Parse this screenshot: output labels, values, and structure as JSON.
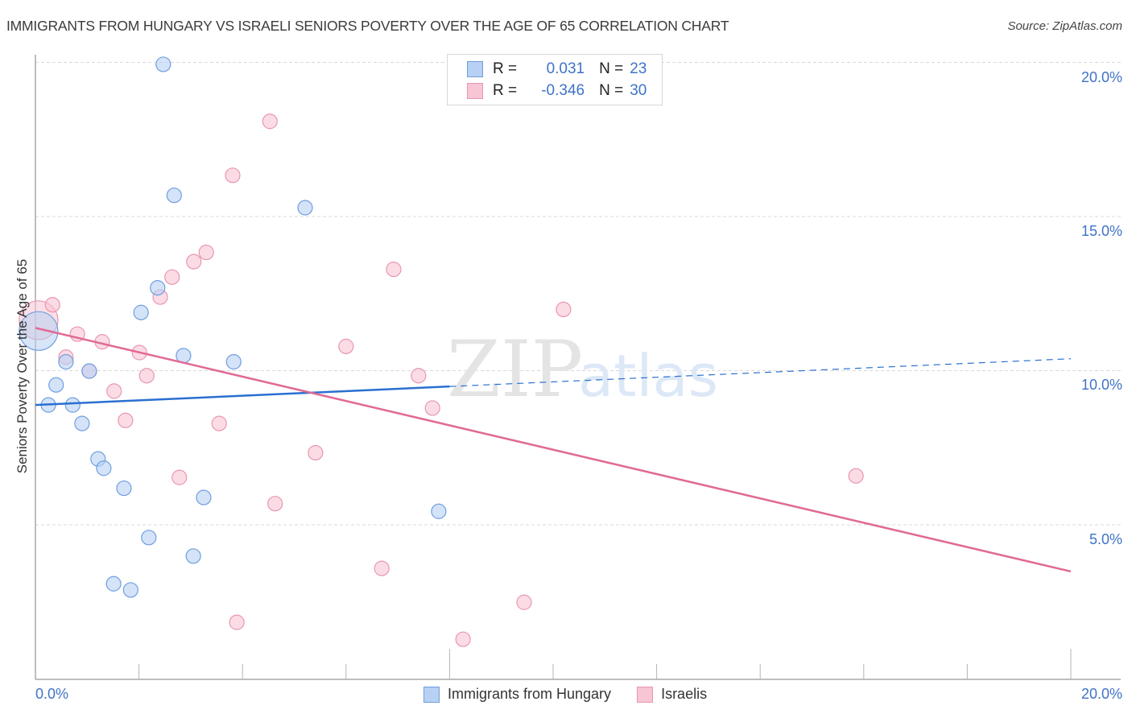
{
  "header": {
    "title": "IMMIGRANTS FROM HUNGARY VS ISRAELI SENIORS POVERTY OVER THE AGE OF 65 CORRELATION CHART",
    "source": "Source: ZipAtlas.com"
  },
  "watermark": {
    "zip": "ZIP",
    "atlas": "atlas"
  },
  "colors": {
    "blue_fill": "#b7d0f3",
    "blue_stroke": "#6f9ee0",
    "blue_line": "#2a6fd0",
    "pink_fill": "#f8c5d4",
    "pink_stroke": "#e996b0",
    "pink_line": "#e06a95",
    "axis_text": "#3f73c8",
    "grid": "#d9d9d9"
  },
  "legend_top": {
    "rows": [
      {
        "r_label": "R =",
        "r_value": "0.031",
        "n_label": "N =",
        "n_value": "23"
      },
      {
        "r_label": "R =",
        "r_value": "-0.346",
        "n_label": "N =",
        "n_value": "30"
      }
    ]
  },
  "legend_bottom": {
    "items": [
      {
        "label": "Immigrants from Hungary"
      },
      {
        "label": "Israelis"
      }
    ]
  },
  "axes": {
    "ylabel": "Seniors Poverty Over the Age of 65",
    "y_ticks": [
      "20.0%",
      "15.0%",
      "10.0%",
      "5.0%"
    ],
    "x_ticks": [
      "0.0%",
      "20.0%"
    ]
  },
  "chart_data": {
    "type": "scatter",
    "title": "IMMIGRANTS FROM HUNGARY VS ISRAELI SENIORS POVERTY OVER THE AGE OF 65 CORRELATION CHART",
    "xlabel": "",
    "ylabel": "Seniors Poverty Over the Age of 65",
    "xlim": [
      0,
      20
    ],
    "ylim": [
      0,
      20.5
    ],
    "x_tick_labels": [
      "0.0%",
      "20.0%"
    ],
    "y_tick_labels": [
      "5.0%",
      "10.0%",
      "15.0%",
      "20.0%"
    ],
    "grid": true,
    "legend_position": "bottom",
    "series": [
      {
        "name": "Immigrants from Hungary",
        "color": "#6f9ee0",
        "R": 0.031,
        "N": 23,
        "trend": {
          "x": [
            0,
            8,
            20
          ],
          "y": [
            8.9,
            9.5,
            10.4
          ],
          "solid_until_x": 8
        },
        "points": [
          [
            0.06,
            11.3,
            "large"
          ],
          [
            0.25,
            8.9
          ],
          [
            0.4,
            9.55
          ],
          [
            0.59,
            10.3
          ],
          [
            0.72,
            8.9
          ],
          [
            0.9,
            8.3
          ],
          [
            1.04,
            10.0
          ],
          [
            1.21,
            7.15
          ],
          [
            1.32,
            6.85
          ],
          [
            1.51,
            3.1
          ],
          [
            1.71,
            6.2
          ],
          [
            1.84,
            2.9
          ],
          [
            2.04,
            11.9
          ],
          [
            2.19,
            4.6
          ],
          [
            2.36,
            12.7
          ],
          [
            2.47,
            19.95
          ],
          [
            2.68,
            15.7
          ],
          [
            2.86,
            10.5
          ],
          [
            3.05,
            4.0
          ],
          [
            3.25,
            5.9
          ],
          [
            3.83,
            10.3
          ],
          [
            5.21,
            15.3
          ],
          [
            7.79,
            5.45
          ]
        ]
      },
      {
        "name": "Israelis",
        "color": "#e996b0",
        "R": -0.346,
        "N": 30,
        "trend": {
          "x": [
            0,
            20
          ],
          "y": [
            11.4,
            3.5
          ]
        },
        "points": [
          [
            0.06,
            11.65,
            "large"
          ],
          [
            0.33,
            12.15
          ],
          [
            0.59,
            10.45
          ],
          [
            0.81,
            11.2
          ],
          [
            1.04,
            10.0
          ],
          [
            1.29,
            10.95
          ],
          [
            1.52,
            9.35
          ],
          [
            1.74,
            8.4
          ],
          [
            2.01,
            10.6
          ],
          [
            2.15,
            9.85
          ],
          [
            2.41,
            12.4
          ],
          [
            2.64,
            13.05
          ],
          [
            2.78,
            6.55
          ],
          [
            3.06,
            13.55
          ],
          [
            3.3,
            13.85
          ],
          [
            3.55,
            8.3
          ],
          [
            3.81,
            16.35
          ],
          [
            3.89,
            1.85
          ],
          [
            4.53,
            18.1
          ],
          [
            4.63,
            5.7
          ],
          [
            5.41,
            7.35
          ],
          [
            6.0,
            10.8
          ],
          [
            6.69,
            3.6
          ],
          [
            6.92,
            13.3
          ],
          [
            7.4,
            9.85
          ],
          [
            7.67,
            8.8
          ],
          [
            8.26,
            1.3
          ],
          [
            9.44,
            2.5
          ],
          [
            10.2,
            12.0
          ],
          [
            15.85,
            6.6
          ]
        ]
      }
    ]
  }
}
